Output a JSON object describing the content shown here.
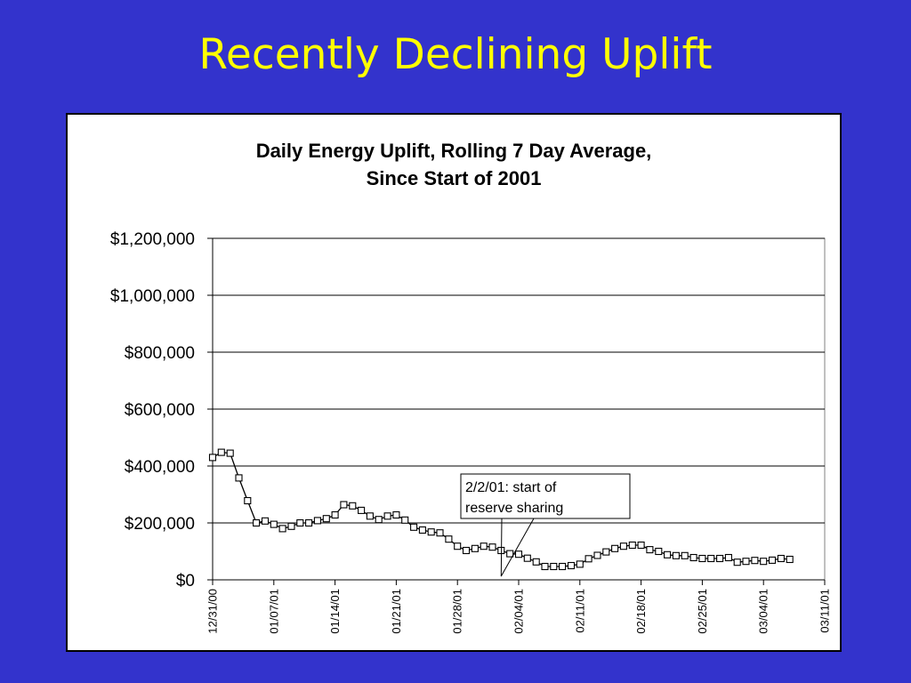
{
  "slide": {
    "title": "Recently Declining Uplift"
  },
  "chart_data": {
    "type": "line",
    "title_lines": [
      "Daily Energy Uplift, Rolling 7 Day Average,",
      "Since Start of 2001"
    ],
    "xlabel": "",
    "ylabel": "",
    "ylim": [
      0,
      1200000
    ],
    "y_ticks": [
      0,
      200000,
      400000,
      600000,
      800000,
      1000000,
      1200000
    ],
    "y_tick_labels": [
      "$0",
      "$200,000",
      "$400,000",
      "$600,000",
      "$800,000",
      "$1,000,000",
      "$1,200,000"
    ],
    "x_range": [
      "2000-12-31",
      "2001-03-11"
    ],
    "x_ticks": [
      "2000-12-31",
      "2001-01-07",
      "2001-01-14",
      "2001-01-21",
      "2001-01-28",
      "2001-02-04",
      "2001-02-11",
      "2001-02-18",
      "2001-02-25",
      "2001-03-04",
      "2001-03-11"
    ],
    "x_tick_labels": [
      "12/31/00",
      "01/07/01",
      "01/14/01",
      "01/21/01",
      "01/28/01",
      "02/04/01",
      "02/11/01",
      "02/18/01",
      "02/25/01",
      "03/04/01",
      "03/11/01"
    ],
    "grid": "horizontal",
    "legend": "none",
    "series": [
      {
        "marker": "square",
        "color": "#000000",
        "dates": [
          "2000-12-31",
          "2001-01-01",
          "2001-01-02",
          "2001-01-03",
          "2001-01-04",
          "2001-01-05",
          "2001-01-06",
          "2001-01-07",
          "2001-01-08",
          "2001-01-09",
          "2001-01-10",
          "2001-01-11",
          "2001-01-12",
          "2001-01-13",
          "2001-01-14",
          "2001-01-15",
          "2001-01-16",
          "2001-01-17",
          "2001-01-18",
          "2001-01-19",
          "2001-01-20",
          "2001-01-21",
          "2001-01-22",
          "2001-01-23",
          "2001-01-24",
          "2001-01-25",
          "2001-01-26",
          "2001-01-27",
          "2001-01-28",
          "2001-01-29",
          "2001-01-30",
          "2001-01-31",
          "2001-02-01",
          "2001-02-02",
          "2001-02-03",
          "2001-02-04",
          "2001-02-05",
          "2001-02-06",
          "2001-02-07",
          "2001-02-08",
          "2001-02-09",
          "2001-02-10",
          "2001-02-11",
          "2001-02-12",
          "2001-02-13",
          "2001-02-14",
          "2001-02-15",
          "2001-02-16",
          "2001-02-17",
          "2001-02-18",
          "2001-02-19",
          "2001-02-20",
          "2001-02-21",
          "2001-02-22",
          "2001-02-23",
          "2001-02-24",
          "2001-02-25",
          "2001-02-26",
          "2001-02-27",
          "2001-02-28",
          "2001-03-01",
          "2001-03-02",
          "2001-03-03",
          "2001-03-04",
          "2001-03-05",
          "2001-03-06",
          "2001-03-07"
        ],
        "values": [
          430000,
          448000,
          445000,
          358000,
          278000,
          200000,
          207000,
          195000,
          180000,
          188000,
          200000,
          200000,
          208000,
          215000,
          228000,
          264000,
          260000,
          244000,
          224000,
          212000,
          224000,
          228000,
          210000,
          185000,
          175000,
          168000,
          165000,
          143000,
          118000,
          103000,
          110000,
          118000,
          115000,
          103000,
          92000,
          90000,
          76000,
          63000,
          47000,
          47000,
          47000,
          50000,
          55000,
          74000,
          86000,
          98000,
          110000,
          118000,
          122000,
          122000,
          106000,
          100000,
          88000,
          85000,
          85000,
          78000,
          75000,
          75000,
          75000,
          78000,
          62000,
          65000,
          68000,
          65000,
          69000,
          75000,
          72000
        ]
      }
    ],
    "annotations": [
      {
        "text_lines": [
          "2/2/01: start of",
          "reserve sharing"
        ],
        "target_date": "2001-02-02",
        "target_value": 0
      }
    ]
  }
}
